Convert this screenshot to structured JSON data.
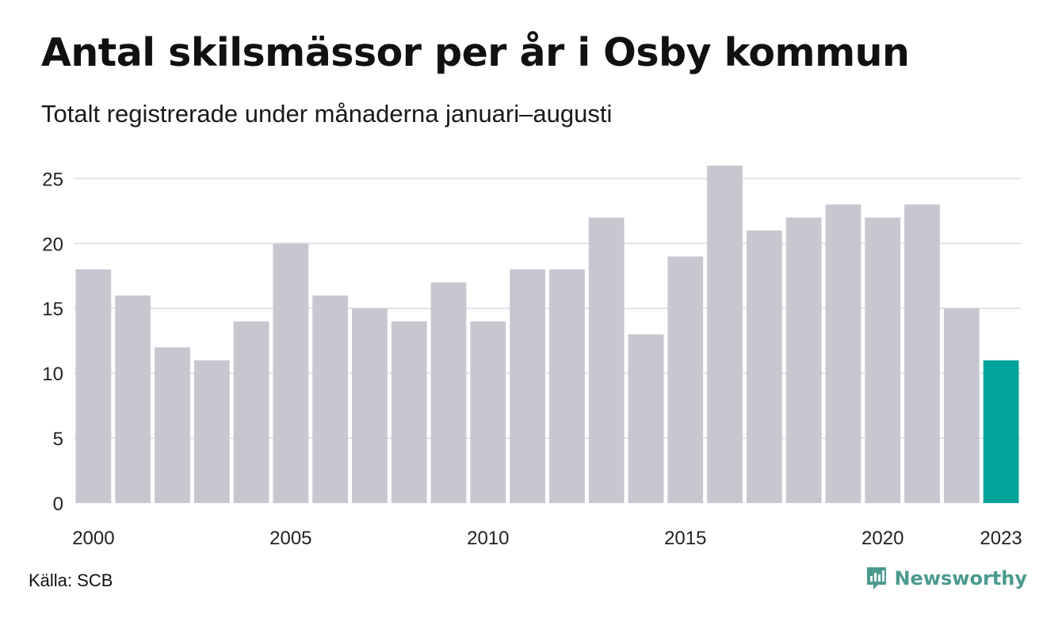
{
  "title": "Antal skilsmässor per år i Osby kommun",
  "subtitle": "Totalt registrerade under månaderna januari–augusti",
  "source": "Källa: SCB",
  "brand": {
    "name": "Newsworthy",
    "icon": "newsworthy-logo-icon",
    "color": "#4a9a8e"
  },
  "colors": {
    "bar": "#c8c7cf",
    "highlight": "#00a39a",
    "grid": "#e4e4e8"
  },
  "chart_data": {
    "type": "bar",
    "categories": [
      "2000",
      "2001",
      "2002",
      "2003",
      "2004",
      "2005",
      "2006",
      "2007",
      "2008",
      "2009",
      "2010",
      "2011",
      "2012",
      "2013",
      "2014",
      "2015",
      "2016",
      "2017",
      "2018",
      "2019",
      "2020",
      "2021",
      "2022",
      "2023"
    ],
    "values": [
      18,
      16,
      12,
      11,
      14,
      20,
      16,
      15,
      14,
      17,
      14,
      18,
      18,
      22,
      13,
      19,
      26,
      21,
      22,
      23,
      22,
      23,
      15,
      11
    ],
    "highlight_category": "2023",
    "x_tick_labels": [
      "2000",
      "2005",
      "2010",
      "2015",
      "2020",
      "2023"
    ],
    "y_ticks": [
      0,
      5,
      10,
      15,
      20,
      25
    ],
    "ylim": [
      0,
      26
    ],
    "grid": true,
    "legend": "none"
  }
}
